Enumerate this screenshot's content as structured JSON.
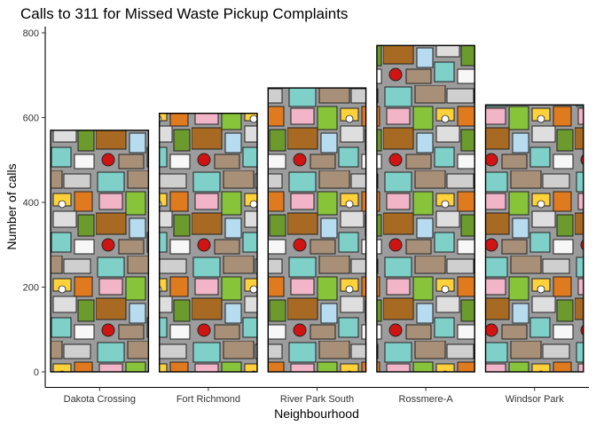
{
  "chart_data": {
    "type": "bar",
    "title": "Calls to 311 for Missed Waste Pickup Complaints",
    "xlabel": "Neighbourhood",
    "ylabel": "Number of calls",
    "categories": [
      "Dakota Crossing",
      "Fort Richmond",
      "River Park South",
      "Rossmere-A",
      "Windsor Park"
    ],
    "values": [
      570,
      610,
      670,
      770,
      630
    ],
    "ylim": [
      0,
      800
    ],
    "yticks": [
      0,
      200,
      400,
      600,
      800
    ],
    "grid": false,
    "legend": "none",
    "bar_fill": "waste-collage-pattern",
    "colors": {
      "bar_outline": "#000000",
      "axis": "#000000",
      "tick_text": "#333333"
    }
  }
}
